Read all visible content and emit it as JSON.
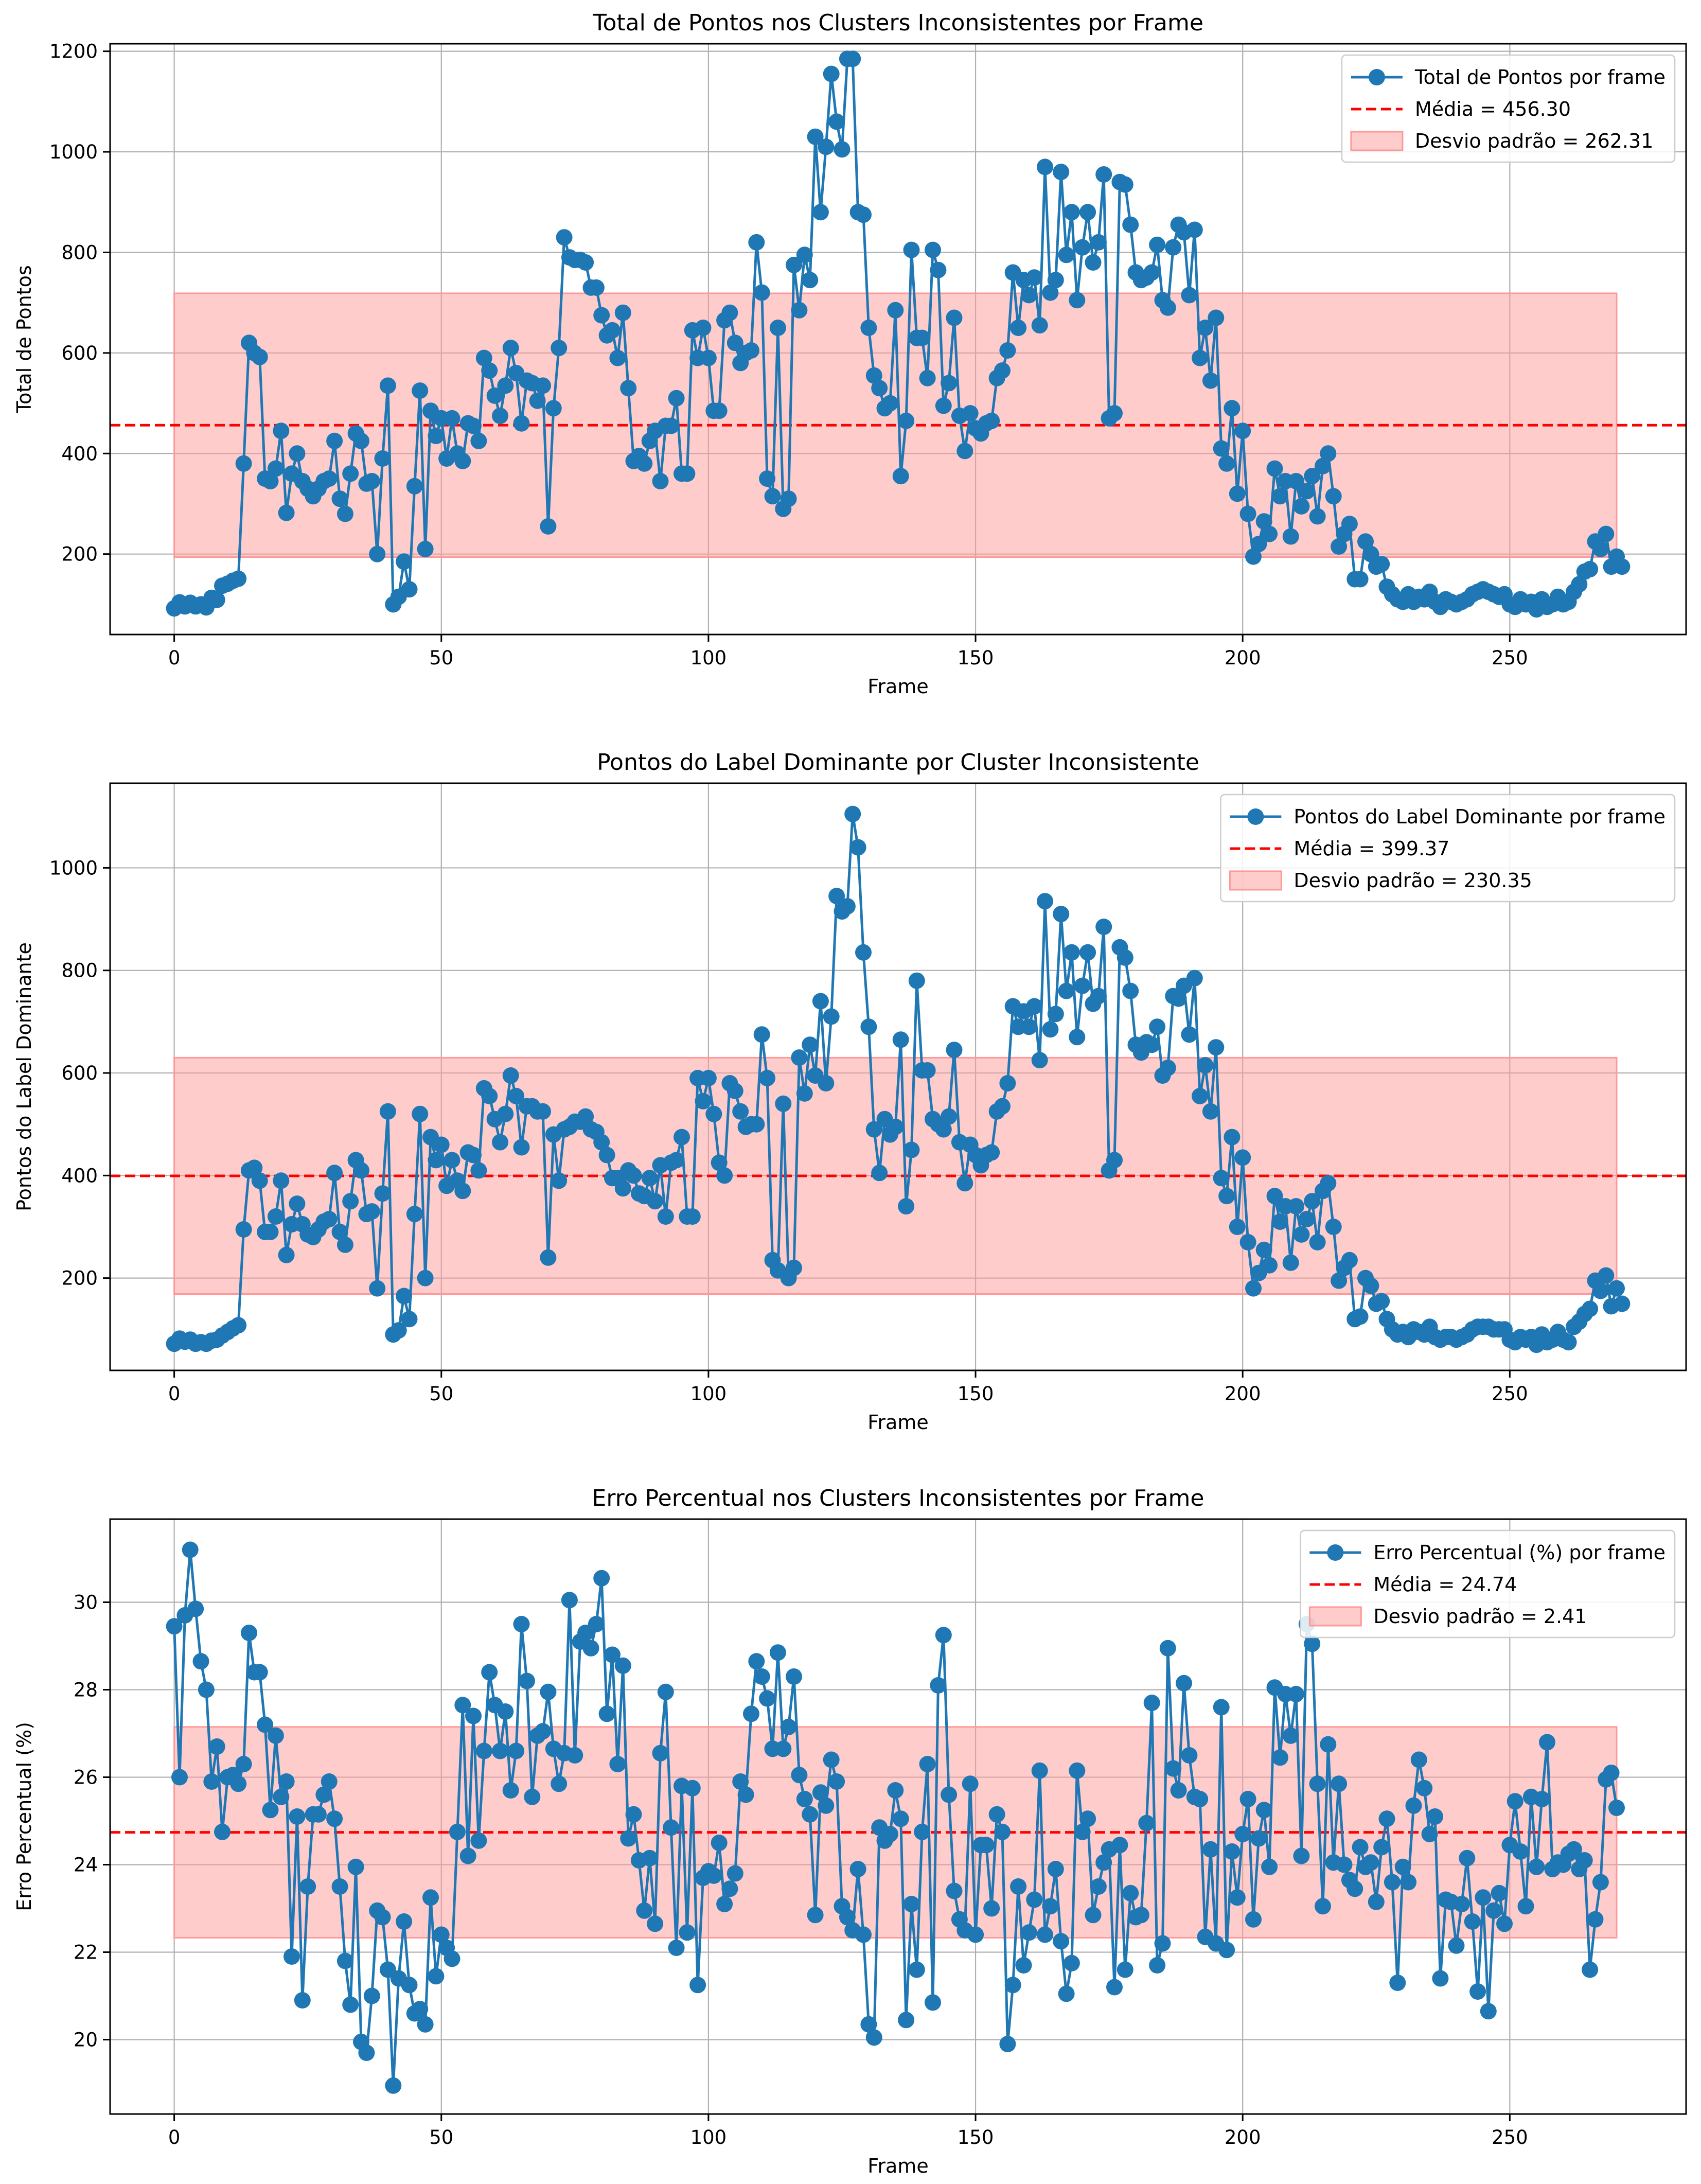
{
  "colors": {
    "series": "#1f77b4",
    "mean": "#ff0000",
    "band": "#ff9999",
    "grid": "#b0b0b0",
    "axis": "#000000"
  },
  "chart_data": [
    {
      "type": "line",
      "title": "Total de Pontos nos Clusters Inconsistentes por Frame",
      "xlabel": "Frame",
      "ylabel": "Total de Pontos",
      "xlim": [
        -12,
        283
      ],
      "ylim": [
        40,
        1215
      ],
      "xticks": [
        0,
        50,
        100,
        150,
        200,
        250
      ],
      "yticks": [
        200,
        400,
        600,
        800,
        1000,
        1200
      ],
      "grid": true,
      "legend_position": "top-right",
      "series": [
        {
          "name": "Total de Pontos por frame",
          "x_start": 0,
          "values": [
            92,
            104,
            96,
            103,
            96,
            100,
            94,
            113,
            109,
            137,
            141,
            147,
            151,
            380,
            620,
            600,
            592,
            350,
            345,
            370,
            445,
            282,
            360,
            400,
            345,
            330,
            315,
            330,
            345,
            350,
            425,
            310,
            280,
            360,
            440,
            425,
            340,
            345,
            200,
            390,
            535,
            100,
            115,
            185,
            130,
            335,
            525,
            210,
            485,
            435,
            470,
            390,
            470,
            400,
            385,
            460,
            455,
            425,
            590,
            565,
            515,
            475,
            535,
            610,
            560,
            460,
            545,
            540,
            505,
            535,
            255,
            490,
            610,
            830,
            790,
            785,
            785,
            780,
            730,
            730,
            675,
            635,
            645,
            590,
            680,
            530,
            385,
            395,
            380,
            425,
            445,
            345,
            455,
            455,
            510,
            360,
            360,
            645,
            590,
            650,
            590,
            485,
            485,
            665,
            680,
            620,
            580,
            600,
            605,
            820,
            720,
            350,
            315,
            650,
            290,
            310,
            775,
            685,
            795,
            745,
            1030,
            880,
            1010,
            1155,
            1060,
            1005,
            1185,
            1185,
            880,
            875,
            650,
            555,
            530,
            490,
            500,
            685,
            355,
            465,
            805,
            630,
            630,
            550,
            805,
            765,
            495,
            540,
            670,
            475,
            405,
            480,
            450,
            440,
            460,
            465,
            550,
            565,
            605,
            760,
            650,
            745,
            715,
            750,
            655,
            970,
            720,
            745,
            960,
            795,
            880,
            705,
            810,
            880,
            780,
            820,
            955,
            470,
            480,
            940,
            935,
            855,
            760,
            745,
            750,
            760,
            815,
            705,
            690,
            810,
            855,
            840,
            715,
            845,
            590,
            650,
            545,
            670,
            410,
            380,
            490,
            320,
            445,
            280,
            195,
            220,
            265,
            240,
            370,
            315,
            345,
            235,
            345,
            295,
            325,
            355,
            275,
            375,
            400,
            315,
            215,
            240,
            260,
            150,
            150,
            225,
            200,
            175,
            180,
            135,
            120,
            110,
            105,
            120,
            105,
            115,
            110,
            125,
            105,
            95,
            110,
            105,
            100,
            105,
            110,
            120,
            125,
            130,
            125,
            120,
            115,
            120,
            100,
            95,
            110,
            100,
            105,
            90,
            110,
            95,
            100,
            115,
            100,
            105,
            125,
            140,
            165,
            170,
            225,
            210,
            240,
            175,
            195,
            175
          ]
        }
      ],
      "mean": {
        "label": "Média = 456.30",
        "value": 456.3
      },
      "std_band": {
        "label": "Desvio padrão = 262.31",
        "low": 193.99,
        "high": 718.61,
        "x_range": [
          0,
          270
        ]
      }
    },
    {
      "type": "line",
      "title": "Pontos do Label Dominante por Cluster Inconsistente",
      "xlabel": "Frame",
      "ylabel": "Pontos do Label Dominante",
      "xlim": [
        -12,
        283
      ],
      "ylim": [
        20,
        1165
      ],
      "xticks": [
        0,
        50,
        100,
        150,
        200,
        250
      ],
      "yticks": [
        200,
        400,
        600,
        800,
        1000
      ],
      "grid": true,
      "legend_position": "top-right",
      "series": [
        {
          "name": "Pontos do Label Dominante por frame",
          "x_start": 0,
          "values": [
            72,
            82,
            76,
            80,
            72,
            75,
            72,
            78,
            80,
            88,
            95,
            102,
            108,
            295,
            410,
            415,
            390,
            290,
            290,
            320,
            390,
            245,
            305,
            345,
            305,
            285,
            280,
            295,
            310,
            315,
            405,
            290,
            265,
            350,
            430,
            410,
            325,
            330,
            180,
            365,
            525,
            90,
            98,
            165,
            120,
            325,
            520,
            200,
            475,
            430,
            460,
            380,
            430,
            390,
            370,
            445,
            440,
            410,
            570,
            555,
            510,
            465,
            520,
            595,
            555,
            455,
            535,
            535,
            525,
            525,
            240,
            480,
            390,
            490,
            495,
            505,
            505,
            515,
            490,
            485,
            465,
            440,
            395,
            395,
            375,
            410,
            400,
            365,
            360,
            395,
            350,
            420,
            320,
            425,
            430,
            475,
            320,
            320,
            590,
            545,
            590,
            520,
            425,
            400,
            580,
            565,
            525,
            495,
            500,
            500,
            675,
            590,
            235,
            215,
            540,
            200,
            220,
            630,
            560,
            655,
            595,
            740,
            580,
            710,
            945,
            915,
            925,
            1105,
            1040,
            835,
            690,
            490,
            405,
            510,
            480,
            495,
            665,
            340,
            450,
            780,
            605,
            605,
            510,
            500,
            490,
            515,
            645,
            465,
            385,
            460,
            440,
            420,
            440,
            445,
            525,
            535,
            580,
            730,
            690,
            720,
            690,
            730,
            625,
            935,
            685,
            715,
            910,
            760,
            835,
            670,
            770,
            835,
            735,
            750,
            885,
            410,
            430,
            845,
            825,
            760,
            655,
            640,
            660,
            655,
            690,
            595,
            610,
            750,
            745,
            770,
            675,
            785,
            555,
            615,
            525,
            650,
            395,
            360,
            475,
            300,
            435,
            270,
            180,
            210,
            255,
            225,
            360,
            310,
            340,
            230,
            340,
            285,
            315,
            350,
            270,
            370,
            385,
            300,
            195,
            220,
            235,
            120,
            125,
            200,
            185,
            150,
            155,
            120,
            100,
            90,
            95,
            85,
            100,
            95,
            90,
            105,
            85,
            80,
            85,
            85,
            80,
            85,
            90,
            100,
            105,
            105,
            105,
            100,
            100,
            100,
            80,
            75,
            85,
            80,
            85,
            70,
            90,
            75,
            80,
            95,
            80,
            75,
            105,
            115,
            130,
            140,
            195,
            175,
            205,
            145,
            180,
            150
          ]
        }
      ],
      "mean": {
        "label": "Média = 399.37",
        "value": 399.37
      },
      "std_band": {
        "label": "Desvio padrão = 230.35",
        "low": 169.02,
        "high": 629.72,
        "x_range": [
          0,
          270
        ]
      }
    },
    {
      "type": "line",
      "title": "Erro Percentual nos Clusters Inconsistentes por Frame",
      "xlabel": "Frame",
      "ylabel": "Erro Percentual (%)",
      "xlim": [
        -12,
        283
      ],
      "ylim": [
        18.3,
        31.9
      ],
      "xticks": [
        0,
        50,
        100,
        150,
        200,
        250
      ],
      "yticks": [
        20,
        22,
        24,
        26,
        28,
        30
      ],
      "grid": true,
      "legend_position": "top-right",
      "series": [
        {
          "name": "Erro Percentual (%) por frame",
          "x_start": 0,
          "values": [
            29.45,
            26.0,
            29.7,
            31.2,
            29.85,
            28.65,
            28.0,
            25.9,
            26.7,
            24.75,
            26.0,
            26.05,
            25.85,
            26.3,
            29.3,
            28.4,
            28.4,
            27.2,
            25.25,
            26.95,
            25.55,
            25.9,
            21.9,
            25.1,
            20.9,
            23.5,
            25.15,
            25.15,
            25.6,
            25.9,
            25.05,
            23.5,
            21.8,
            20.8,
            23.95,
            19.95,
            19.7,
            21.0,
            22.95,
            22.8,
            21.6,
            18.95,
            21.4,
            22.7,
            21.25,
            20.6,
            20.7,
            20.35,
            23.25,
            21.45,
            22.4,
            22.1,
            21.85,
            24.75,
            27.65,
            24.2,
            27.4,
            24.55,
            26.6,
            28.4,
            27.65,
            26.6,
            27.5,
            25.7,
            26.6,
            29.5,
            28.2,
            25.55,
            26.95,
            27.05,
            27.95,
            26.65,
            25.85,
            26.55,
            30.05,
            26.5,
            29.1,
            29.3,
            28.95,
            29.5,
            30.55,
            27.45,
            28.8,
            26.3,
            28.55,
            24.6,
            25.15,
            24.1,
            22.95,
            24.15,
            22.65,
            26.55,
            27.95,
            24.85,
            22.1,
            25.8,
            22.45,
            25.75,
            21.25,
            23.7,
            23.85,
            23.75,
            24.5,
            23.1,
            23.45,
            23.8,
            25.9,
            25.6,
            27.45,
            28.65,
            28.3,
            27.8,
            26.65,
            28.85,
            26.65,
            27.15,
            28.3,
            26.05,
            25.5,
            25.15,
            22.85,
            25.65,
            25.35,
            26.4,
            25.9,
            23.05,
            22.8,
            22.5,
            23.9,
            22.4,
            20.35,
            20.05,
            24.85,
            24.55,
            24.7,
            25.7,
            25.05,
            20.45,
            23.1,
            21.6,
            24.75,
            26.3,
            20.85,
            28.1,
            29.25,
            25.6,
            23.4,
            22.75,
            22.5,
            25.85,
            22.4,
            24.45,
            24.45,
            23.0,
            25.15,
            24.75,
            19.9,
            21.25,
            23.5,
            21.7,
            22.45,
            23.2,
            26.15,
            22.4,
            23.05,
            23.9,
            22.25,
            21.05,
            21.75,
            26.15,
            24.75,
            25.05,
            22.85,
            23.5,
            24.05,
            24.35,
            21.2,
            24.45,
            21.6,
            23.35,
            22.8,
            22.85,
            24.95,
            27.7,
            21.7,
            22.2,
            28.95,
            26.2,
            25.7,
            28.15,
            26.5,
            25.55,
            25.5,
            22.35,
            24.35,
            22.2,
            27.6,
            22.05,
            24.3,
            23.25,
            24.7,
            25.5,
            22.75,
            24.6,
            25.25,
            23.95,
            28.05,
            26.45,
            27.9,
            26.95,
            27.9,
            24.2,
            29.5,
            29.05,
            25.85,
            23.05,
            26.75,
            24.05,
            25.85,
            24.0,
            23.65,
            23.45,
            24.4,
            23.95,
            24.05,
            23.15,
            24.4,
            25.05,
            23.6,
            21.3,
            23.95,
            23.6,
            25.35,
            26.4,
            25.75,
            24.7,
            25.1,
            21.4,
            23.2,
            23.15,
            22.15,
            23.1,
            24.15,
            22.7,
            21.1,
            23.25,
            20.65,
            22.95,
            23.35,
            22.65,
            24.45,
            25.45,
            24.3,
            23.05,
            25.55,
            23.95,
            25.5,
            26.8,
            23.9,
            24.05,
            24.0,
            24.25,
            24.35,
            23.9,
            24.1,
            21.6,
            22.75,
            23.6,
            25.95,
            26.1,
            25.3
          ]
        }
      ],
      "mean": {
        "label": "Média = 24.74",
        "value": 24.74
      },
      "std_band": {
        "label": "Desvio padrão = 2.41",
        "low": 22.33,
        "high": 27.15,
        "x_range": [
          0,
          270
        ]
      }
    }
  ]
}
